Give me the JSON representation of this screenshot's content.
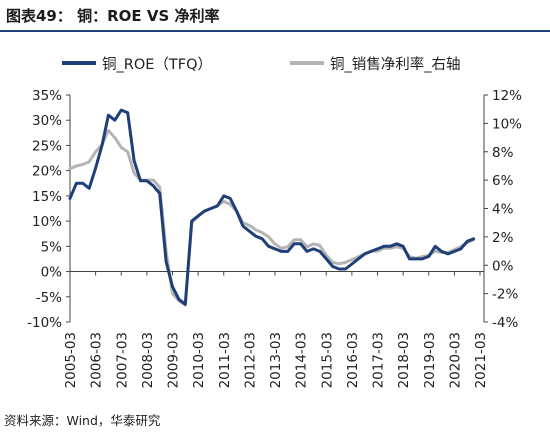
{
  "header": {
    "title": "图表49： 铜：ROE VS 净利率"
  },
  "footer": {
    "source": "资料来源：Wind，华泰研究"
  },
  "chart_data": {
    "type": "line",
    "title": "铜：ROE VS 净利率",
    "legend_position": "top",
    "grid": false,
    "x_ticks": [
      "2005-03",
      "2006-03",
      "2007-03",
      "2008-03",
      "2009-03",
      "2010-03",
      "2011-03",
      "2012-03",
      "2013-03",
      "2014-03",
      "2015-03",
      "2016-03",
      "2017-03",
      "2018-03",
      "2019-03",
      "2020-03",
      "2021-03"
    ],
    "y_left": {
      "ylim": [
        -10,
        35
      ],
      "ticks": [
        "-10%",
        "-5%",
        "0%",
        "5%",
        "10%",
        "15%",
        "20%",
        "25%",
        "30%",
        "35%"
      ]
    },
    "y_right": {
      "ylim": [
        -4,
        12
      ],
      "ticks": [
        "-4%",
        "-2%",
        "0%",
        "2%",
        "4%",
        "6%",
        "8%",
        "10%",
        "12%"
      ]
    },
    "series": [
      {
        "name": "铜_ROE（TFQ）",
        "axis": "left",
        "unit": "%",
        "color": "#1f3f78",
        "points": [
          [
            "2005-03",
            14.5
          ],
          [
            "2005-06",
            17.5
          ],
          [
            "2005-09",
            17.5
          ],
          [
            "2005-12",
            16.5
          ],
          [
            "2006-03",
            20.5
          ],
          [
            "2006-06",
            25.0
          ],
          [
            "2006-09",
            31.0
          ],
          [
            "2006-12",
            30.0
          ],
          [
            "2007-03",
            32.0
          ],
          [
            "2007-06",
            31.5
          ],
          [
            "2007-09",
            22.0
          ],
          [
            "2007-12",
            18.0
          ],
          [
            "2008-03",
            18.0
          ],
          [
            "2008-06",
            17.0
          ],
          [
            "2008-09",
            15.5
          ],
          [
            "2008-12",
            2.0
          ],
          [
            "2009-03",
            -3.0
          ],
          [
            "2009-06",
            -5.5
          ],
          [
            "2009-09",
            -6.5
          ],
          [
            "2009-12",
            10.0
          ],
          [
            "2010-03",
            11.0
          ],
          [
            "2010-06",
            12.0
          ],
          [
            "2010-09",
            12.5
          ],
          [
            "2010-12",
            13.0
          ],
          [
            "2011-03",
            15.0
          ],
          [
            "2011-06",
            14.5
          ],
          [
            "2011-09",
            12.0
          ],
          [
            "2011-12",
            9.0
          ],
          [
            "2012-03",
            8.0
          ],
          [
            "2012-06",
            7.0
          ],
          [
            "2012-09",
            6.5
          ],
          [
            "2012-12",
            5.0
          ],
          [
            "2013-03",
            4.5
          ],
          [
            "2013-06",
            4.0
          ],
          [
            "2013-09",
            4.0
          ],
          [
            "2013-12",
            5.5
          ],
          [
            "2014-03",
            5.5
          ],
          [
            "2014-06",
            4.0
          ],
          [
            "2014-09",
            4.5
          ],
          [
            "2014-12",
            4.0
          ],
          [
            "2015-03",
            2.5
          ],
          [
            "2015-06",
            1.0
          ],
          [
            "2015-09",
            0.5
          ],
          [
            "2015-12",
            0.5
          ],
          [
            "2016-03",
            1.5
          ],
          [
            "2016-06",
            2.5
          ],
          [
            "2016-09",
            3.5
          ],
          [
            "2016-12",
            4.0
          ],
          [
            "2017-03",
            4.5
          ],
          [
            "2017-06",
            5.0
          ],
          [
            "2017-09",
            5.0
          ],
          [
            "2017-12",
            5.5
          ],
          [
            "2018-03",
            5.0
          ],
          [
            "2018-06",
            2.5
          ],
          [
            "2018-09",
            2.5
          ],
          [
            "2018-12",
            2.5
          ],
          [
            "2019-03",
            3.0
          ],
          [
            "2019-06",
            5.0
          ],
          [
            "2019-09",
            4.0
          ],
          [
            "2019-12",
            3.5
          ],
          [
            "2020-03",
            4.0
          ],
          [
            "2020-06",
            4.5
          ],
          [
            "2020-09",
            6.0
          ],
          [
            "2020-12",
            6.5
          ]
        ]
      },
      {
        "name": "铜_销售净利率_右轴",
        "axis": "right",
        "unit": "%",
        "color": "#b4b4b4",
        "points": [
          [
            "2005-03",
            6.8
          ],
          [
            "2005-06",
            7.0
          ],
          [
            "2005-09",
            7.1
          ],
          [
            "2005-12",
            7.3
          ],
          [
            "2006-03",
            8.0
          ],
          [
            "2006-06",
            8.5
          ],
          [
            "2006-09",
            9.5
          ],
          [
            "2006-12",
            9.0
          ],
          [
            "2007-03",
            8.3
          ],
          [
            "2007-06",
            8.0
          ],
          [
            "2007-09",
            6.5
          ],
          [
            "2007-12",
            6.0
          ],
          [
            "2008-03",
            6.0
          ],
          [
            "2008-06",
            6.0
          ],
          [
            "2008-09",
            5.5
          ],
          [
            "2008-12",
            1.0
          ],
          [
            "2009-03",
            -2.0
          ],
          [
            "2009-06",
            -2.5
          ],
          [
            "2009-09",
            -2.8
          ],
          [
            "2009-12",
            3.0
          ],
          [
            "2010-03",
            3.5
          ],
          [
            "2010-06",
            3.8
          ],
          [
            "2010-09",
            4.0
          ],
          [
            "2010-12",
            4.2
          ],
          [
            "2011-03",
            4.5
          ],
          [
            "2011-06",
            4.3
          ],
          [
            "2011-09",
            3.8
          ],
          [
            "2011-12",
            3.0
          ],
          [
            "2012-03",
            2.8
          ],
          [
            "2012-06",
            2.5
          ],
          [
            "2012-09",
            2.3
          ],
          [
            "2012-12",
            2.0
          ],
          [
            "2013-03",
            1.5
          ],
          [
            "2013-06",
            1.2
          ],
          [
            "2013-09",
            1.3
          ],
          [
            "2013-12",
            1.8
          ],
          [
            "2014-03",
            1.8
          ],
          [
            "2014-06",
            1.3
          ],
          [
            "2014-09",
            1.5
          ],
          [
            "2014-12",
            1.4
          ],
          [
            "2015-03",
            0.7
          ],
          [
            "2015-06",
            0.2
          ],
          [
            "2015-09",
            0.1
          ],
          [
            "2015-12",
            0.2
          ],
          [
            "2016-03",
            0.4
          ],
          [
            "2016-06",
            0.6
          ],
          [
            "2016-09",
            0.8
          ],
          [
            "2016-12",
            1.0
          ],
          [
            "2017-03",
            1.0
          ],
          [
            "2017-06",
            1.2
          ],
          [
            "2017-09",
            1.2
          ],
          [
            "2017-12",
            1.3
          ],
          [
            "2018-03",
            1.2
          ],
          [
            "2018-06",
            0.6
          ],
          [
            "2018-09",
            0.5
          ],
          [
            "2018-12",
            0.6
          ],
          [
            "2019-03",
            0.7
          ],
          [
            "2019-06",
            1.0
          ],
          [
            "2019-09",
            0.9
          ],
          [
            "2019-12",
            0.9
          ],
          [
            "2020-03",
            1.1
          ],
          [
            "2020-06",
            1.3
          ],
          [
            "2020-09",
            1.6
          ],
          [
            "2020-12",
            1.8
          ]
        ]
      }
    ]
  }
}
